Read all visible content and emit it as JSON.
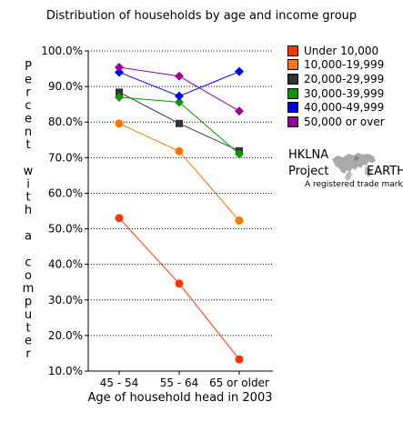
{
  "chart_data": {
    "type": "line",
    "title": "Distribution of households by age and income group",
    "xlabel": "Age of household head in 2003",
    "ylabel": "Percent with a computer",
    "categories": [
      "45 - 54",
      "55 - 64",
      "65 or older"
    ],
    "ylim": [
      10,
      100
    ],
    "yticks": [
      "100.0%",
      "90.0%",
      "80.0%",
      "70.0%",
      "60.0%",
      "50.0%",
      "40.0%",
      "30.0%",
      "20.0%",
      "10.0%"
    ],
    "grid": "horizontal dotted",
    "legend_position": "right",
    "series": [
      {
        "name": "Under 10,000",
        "color": "#ff3300",
        "line": "#ff3300",
        "marker": "circle",
        "values": [
          53.0,
          34.6,
          13.3
        ]
      },
      {
        "name": "10,000-19,999",
        "color": "#ff7700",
        "line": "#ff7700",
        "marker": "circle",
        "values": [
          79.6,
          71.8,
          52.3
        ]
      },
      {
        "name": "20,000-29,999",
        "color": "#333333",
        "line": "#333333",
        "marker": "square",
        "values": [
          88.4,
          79.6,
          71.9
        ]
      },
      {
        "name": "30,000-39,999",
        "color": "#009900",
        "line": "#009900",
        "marker": "diamond",
        "values": [
          87.0,
          85.6,
          71.0
        ]
      },
      {
        "name": "40,000-49,999",
        "color": "#0000ff",
        "line": "#0000ff",
        "marker": "diamond",
        "values": [
          94.0,
          87.3,
          94.2
        ]
      },
      {
        "name": "50,000 or over",
        "color": "#990099",
        "line": "#990099",
        "marker": "diamond",
        "values": [
          95.4,
          92.9,
          83.1
        ]
      }
    ]
  },
  "logo": {
    "line1": "HKLNA",
    "line2a": "Project",
    "line2b": "EARTH",
    "tagline": "A registered trade mark"
  }
}
